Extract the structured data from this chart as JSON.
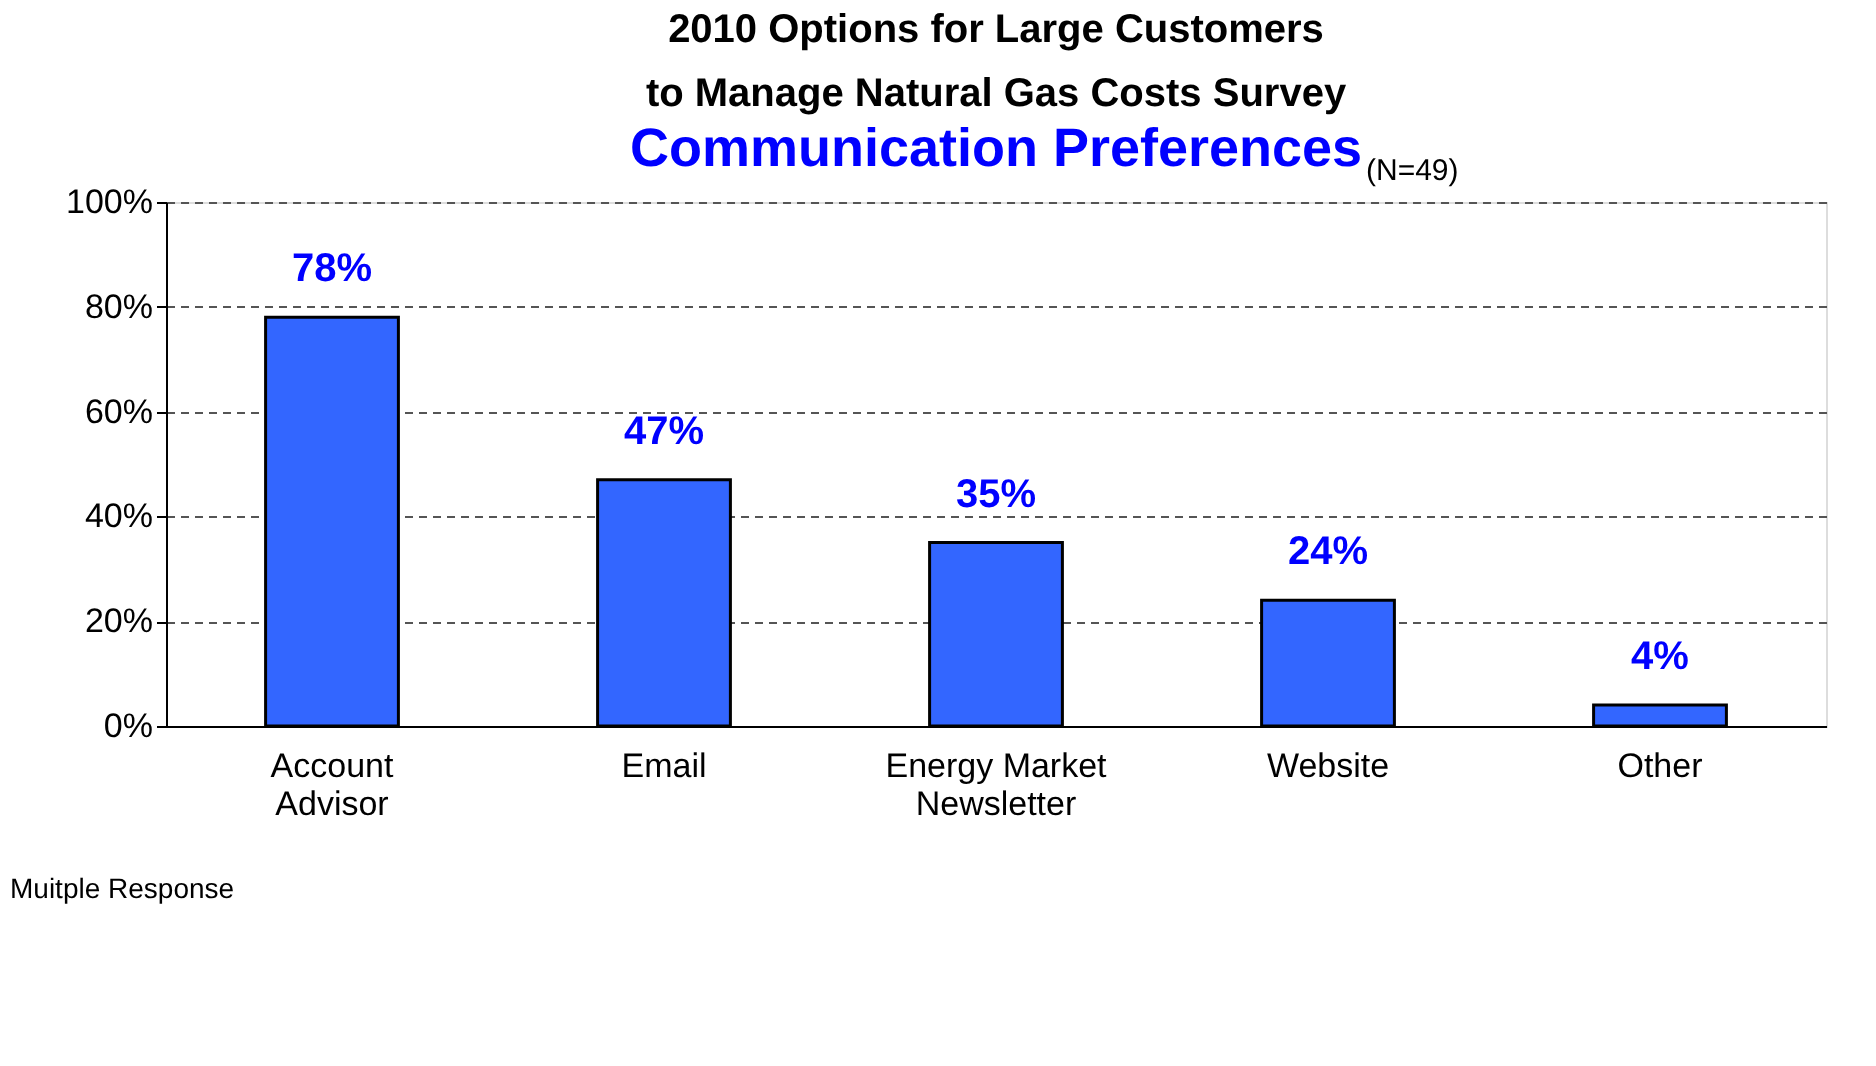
{
  "chart_data": {
    "type": "bar",
    "title": [
      "2010 Options for Large Customers",
      "to Manage Natural Gas Costs Survey"
    ],
    "subtitle": "Communication Preferences",
    "categories": [
      "Account Advisor",
      "Email",
      "Energy Market Newsletter",
      "Website",
      "Other"
    ],
    "values": [
      78,
      47,
      35,
      24,
      4
    ],
    "color": "#3366ff",
    "value_labels": [
      "78%",
      "47%",
      "35%",
      "24%",
      "4%"
    ],
    "ylim": [
      0,
      100
    ],
    "yticks": [
      {
        "value": 0,
        "label": "0%"
      },
      {
        "value": 20,
        "label": "20%"
      },
      {
        "value": 40,
        "label": "40%"
      },
      {
        "value": 60,
        "label": "60%"
      },
      {
        "value": 80,
        "label": "80%"
      },
      {
        "value": 100,
        "label": "100%"
      }
    ],
    "grid": "y",
    "line_style": "dashed",
    "annotations": [
      "(N=49)",
      "Muitple Response"
    ]
  }
}
